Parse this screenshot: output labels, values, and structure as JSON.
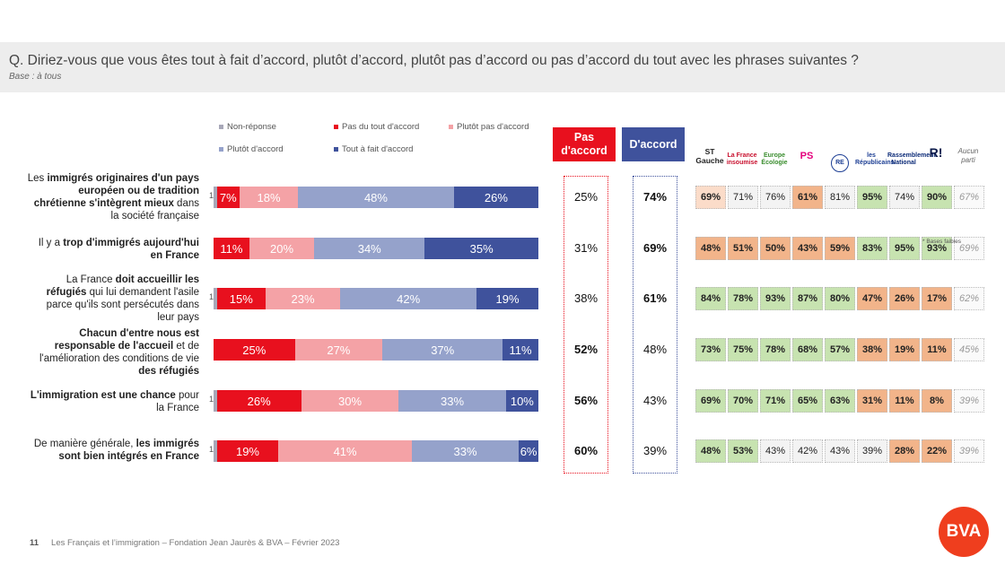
{
  "header": {
    "question": "Q. Diriez-vous que vous êtes tout à fait d’accord, plutôt d’accord, plutôt pas d’accord ou pas d’accord du tout avec les phrases suivantes ?",
    "base": "Base : à tous"
  },
  "colors": {
    "non_reponse": "#a8a8b8",
    "pas_du_tout": "#e8101e",
    "plutot_pas": "#f4a2a6",
    "plutot": "#95a2cb",
    "tout_a_fait": "#3f529c",
    "pas_accord_head": "#e8101e",
    "accord_head": "#3f529c",
    "green": "#c7e3b0",
    "orange": "#f2b48a",
    "light_orange": "#fbdcc9",
    "neutral": "#f3f3f3"
  },
  "chart_data": {
    "type": "bar",
    "stacked": true,
    "orientation": "horizontal",
    "legend": [
      "Non-réponse",
      "Pas du tout d'accord",
      "Plutôt pas d'accord",
      "Plutôt d'accord",
      "Tout à fait d'accord"
    ],
    "categories": [
      "Les immigrés originaires d'un pays européen ou de tradition chrétienne s'intègrent mieux dans la société française",
      "Il y a trop d'immigrés aujourd'hui en France",
      "La France doit accueillir les réfugiés qui lui demandent l'asile parce qu'ils sont persécutés dans leur pays",
      "Chacun d'entre nous est responsable de l'accueil et de l'amélioration des conditions de vie des réfugiés",
      "L'immigration est une chance pour la France",
      "De manière générale, les immigrés sont bien intégrés en France"
    ],
    "series": [
      {
        "name": "Non-réponse",
        "values": [
          1,
          0,
          1,
          0,
          1,
          1
        ]
      },
      {
        "name": "Pas du tout d'accord",
        "values": [
          7,
          11,
          15,
          25,
          26,
          19
        ]
      },
      {
        "name": "Plutôt pas d'accord",
        "values": [
          18,
          20,
          23,
          27,
          30,
          41
        ]
      },
      {
        "name": "Plutôt d'accord",
        "values": [
          48,
          34,
          42,
          37,
          33,
          33
        ]
      },
      {
        "name": "Tout à fait d'accord",
        "values": [
          26,
          35,
          19,
          11,
          10,
          6
        ]
      }
    ],
    "totals": {
      "pas_accord": [
        "25%",
        "31%",
        "38%",
        "52%",
        "56%",
        "60%"
      ],
      "accord": [
        "74%",
        "69%",
        "61%",
        "48%",
        "43%",
        "39%"
      ]
    }
  },
  "rows": [
    {
      "label_html": "Les <b>immigrés originaires d'un pays européen ou de tradition chrétienne s'intègrent mieux</b> dans la société française"
    },
    {
      "label_html": "Il y a <b>trop d'immigrés aujourd'hui en France</b>"
    },
    {
      "label_html": "La France <b>doit accueillir les réfugiés</b> qui lui demandent l'asile parce qu'ils sont persécutés dans leur pays"
    },
    {
      "label_html": "<b>Chacun d'entre nous est responsable de l'accueil</b> et de l'amélioration des conditions de vie <b>des réfugiés</b>"
    },
    {
      "label_html": "<b>L'immigration est une chance</b> pour la France"
    },
    {
      "label_html": "De manière générale, <b>les immigrés sont bien intégrés en France</b>"
    }
  ],
  "heads": {
    "pas_accord": "Pas d'accord",
    "accord": "D'accord"
  },
  "parties": {
    "headers": [
      "ST Gauche",
      "La France insoumise",
      "Europe Écologie",
      "PS",
      "RE",
      "les Républicains",
      "Rassemblement National",
      "Reconquête",
      "Aucun parti"
    ],
    "values": [
      [
        "69%",
        "71%",
        "76%",
        "61%",
        "81%",
        "95%",
        "74%",
        "90%",
        "67%"
      ],
      [
        "48%",
        "51%",
        "50%",
        "43%",
        "59%",
        "83%",
        "95%",
        "93%",
        "69%"
      ],
      [
        "84%",
        "78%",
        "93%",
        "87%",
        "80%",
        "47%",
        "26%",
        "17%",
        "62%"
      ],
      [
        "73%",
        "75%",
        "78%",
        "68%",
        "57%",
        "38%",
        "19%",
        "11%",
        "45%"
      ],
      [
        "69%",
        "70%",
        "71%",
        "65%",
        "63%",
        "31%",
        "11%",
        "8%",
        "39%"
      ],
      [
        "48%",
        "53%",
        "43%",
        "42%",
        "43%",
        "39%",
        "28%",
        "22%",
        "39%"
      ]
    ],
    "note": "* Bases faibles"
  },
  "footer": {
    "page": "11",
    "text": "Les Français et l’immigration – Fondation Jean Jaurès & BVA – Février 2023",
    "logo": "BVA"
  }
}
